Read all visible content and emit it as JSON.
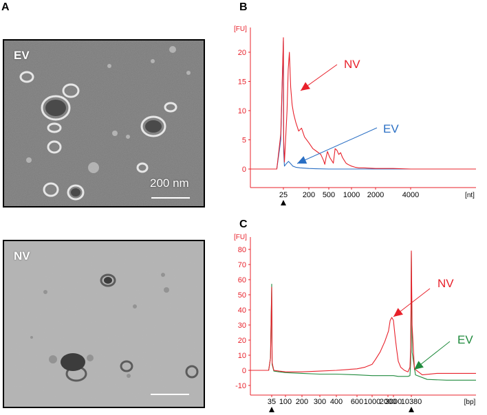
{
  "panels": {
    "a": {
      "letter": "A"
    },
    "b": {
      "letter": "B"
    },
    "c": {
      "letter": "C"
    }
  },
  "micrographs": [
    {
      "label": "EV",
      "scale_text": "200 nm"
    },
    {
      "label": "NV",
      "scale_text": ""
    }
  ],
  "chart_data": [
    {
      "type": "line",
      "panel": "B",
      "ylabel": "[FU]",
      "xlabel": "[nt]",
      "yticks": [
        0,
        5,
        10,
        15,
        20
      ],
      "ylim": [
        -1,
        23
      ],
      "xticks": [
        "25",
        "200",
        "500",
        "1000",
        "2000",
        "4000"
      ],
      "xtick_positions": [
        25,
        200,
        500,
        1000,
        2000,
        4000
      ],
      "x_axis": "ladder-scaled (piecewise)",
      "markers": [
        "25"
      ],
      "colors": {
        "NV": "#e8202a",
        "EV": "#2a6fc4"
      },
      "series": [
        {
          "name": "NV",
          "x": [
            0,
            20,
            23,
            25,
            27,
            32,
            40,
            50,
            58,
            66,
            75,
            85,
            95,
            110,
            130,
            150,
            170,
            200,
            260,
            320,
            380,
            420,
            440,
            460,
            480,
            520,
            560,
            600,
            640,
            680,
            720,
            760,
            800,
            840,
            880,
            920,
            1000,
            1150,
            1300,
            1500,
            2000,
            3000,
            4000,
            4700
          ],
          "y": [
            0,
            0,
            6,
            22.5,
            5,
            1.2,
            5,
            10,
            17,
            20,
            14,
            11,
            9.5,
            8,
            6.5,
            7,
            5.5,
            4.5,
            3.5,
            3,
            2.5,
            1.5,
            0.8,
            2,
            3,
            2,
            1.5,
            1,
            3.5,
            3.2,
            2.5,
            2.8,
            2,
            1.5,
            1,
            0.8,
            0.5,
            0.3,
            0.2,
            0.2,
            0.1,
            0.1,
            0,
            0
          ]
        },
        {
          "name": "EV",
          "x": [
            0,
            20,
            23,
            25,
            27,
            32,
            45,
            60,
            75,
            90,
            110,
            140,
            200,
            300,
            500,
            1000,
            2000,
            4000,
            4700
          ],
          "y": [
            0,
            0,
            5,
            22,
            3,
            0.5,
            0.9,
            1.3,
            0.9,
            0.5,
            0.3,
            0.2,
            0.1,
            0.05,
            0,
            0,
            0,
            0,
            0
          ]
        }
      ],
      "annotations": [
        {
          "text": "NV",
          "color": "#e8202a"
        },
        {
          "text": "EV",
          "color": "#2a6fc4"
        }
      ]
    },
    {
      "type": "line",
      "panel": "C",
      "ylabel": "[FU]",
      "xlabel": "[bp]",
      "yticks": [
        -10,
        0,
        10,
        20,
        30,
        40,
        50,
        60,
        70,
        80
      ],
      "ylim": [
        -15,
        85
      ],
      "xticks": [
        "35",
        "100",
        "200",
        "300",
        "400",
        "600",
        "1000",
        "2000",
        "3000",
        "10380"
      ],
      "xtick_positions": [
        35,
        100,
        200,
        300,
        400,
        600,
        1000,
        2000,
        3000,
        10380
      ],
      "x_axis": "ladder-scaled (piecewise)",
      "markers": [
        "35",
        "10380"
      ],
      "colors": {
        "NV": "#e8202a",
        "EV": "#1f8a3c"
      },
      "series": [
        {
          "name": "NV",
          "x": [
            0,
            30,
            33,
            35,
            37,
            45,
            70,
            100,
            200,
            300,
            400,
            500,
            600,
            800,
            1000,
            1200,
            1500,
            1800,
            2100,
            2400,
            2700,
            3000,
            3300,
            3700,
            4300,
            5000,
            6000,
            7500,
            9000,
            9800,
            10100,
            10300,
            10380,
            10460,
            10700,
            11500,
            13000,
            15000,
            17000
          ],
          "y": [
            0,
            0,
            8,
            55,
            5,
            0,
            -0.5,
            -1,
            -1,
            -0.5,
            0,
            0.5,
            1,
            2,
            4,
            7,
            12,
            19,
            26,
            33,
            35,
            33,
            28,
            22,
            14,
            6,
            2,
            0,
            -1,
            2,
            15,
            55,
            79,
            30,
            1,
            -3,
            -2,
            -2,
            -2
          ]
        },
        {
          "name": "EV",
          "x": [
            0,
            30,
            33,
            35,
            37,
            45,
            70,
            100,
            200,
            300,
            400,
            600,
            1000,
            2000,
            3000,
            5000,
            7000,
            9000,
            9800,
            10100,
            10300,
            10380,
            10460,
            10800,
            12000,
            14000,
            17000
          ],
          "y": [
            0,
            0,
            8,
            57,
            4,
            -0.5,
            -1,
            -1.5,
            -2,
            -2.5,
            -2.5,
            -3,
            -3.5,
            -3.5,
            -3.5,
            -4,
            -4,
            -4,
            -3.5,
            5,
            45,
            78,
            12,
            -3,
            -6,
            -6.5,
            -6.5
          ]
        }
      ],
      "annotations": [
        {
          "text": "NV",
          "color": "#e8202a"
        },
        {
          "text": "EV",
          "color": "#1f8a3c"
        }
      ]
    }
  ]
}
